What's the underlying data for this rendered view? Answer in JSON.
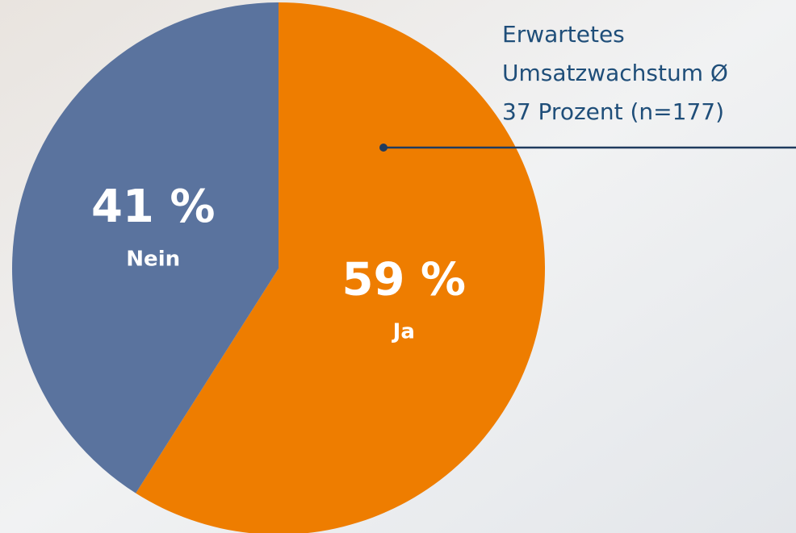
{
  "chart_data": {
    "type": "pie",
    "categories": [
      "Ja",
      "Nein"
    ],
    "values": [
      59,
      41
    ],
    "value_labels": [
      "59 %",
      "41 %"
    ],
    "colors": [
      "#ee7d00",
      "#5a739e"
    ],
    "annotation": [
      "Erwartetes",
      "Umsatzwachstum Ø",
      "37 Prozent (n=177)"
    ]
  }
}
